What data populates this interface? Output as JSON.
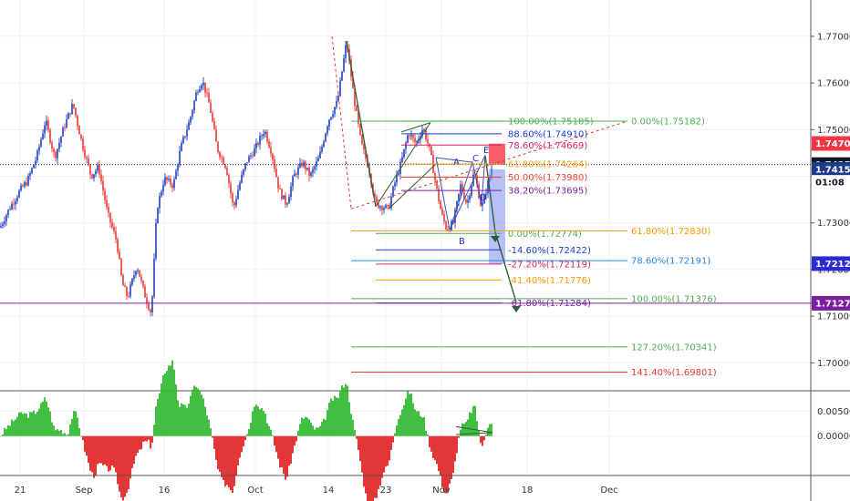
{
  "chart_data": {
    "type": "candlestick",
    "title": "",
    "grid": true,
    "x_ticks": [
      "21",
      "Sep",
      "16",
      "Oct",
      "14",
      "23",
      "Nov",
      "18",
      "Dec"
    ],
    "y_ticks": [
      "1.77000",
      "1.76000",
      "1.75000",
      "1.74000",
      "1.73000",
      "1.72000",
      "1.71000",
      "1.70000"
    ],
    "y_range": [
      1.6942,
      1.7778
    ],
    "price_tags": [
      {
        "label": "1.74704",
        "value": 1.74704,
        "color": "#f23645"
      },
      {
        "label": "1.74251",
        "value": 1.74251,
        "color": "#131722"
      },
      {
        "label": "1.74150",
        "value": 1.7415,
        "color": "#1e3a8a"
      },
      {
        "label": "01:08",
        "value": 1.7387,
        "color": "#ffffff",
        "text_color": "#131722"
      },
      {
        "label": "1.72127",
        "value": 1.72127,
        "color": "#2b2bd6"
      },
      {
        "label": "1.71277",
        "value": 1.71277,
        "color": "#7b1fa2"
      }
    ],
    "fib_retracement": [
      {
        "label": "100.00%(1.75185)",
        "value": 1.75185,
        "color": "#4caf50"
      },
      {
        "label": "88.60%(1.74910)",
        "value": 1.7491,
        "color": "#1e3ad6"
      },
      {
        "label": "78.60%(1.74669)",
        "value": 1.74669,
        "color": "#e91e63"
      },
      {
        "label": "61.80%(1.74264)",
        "value": 1.74264,
        "color": "#ff9800"
      },
      {
        "label": "50.00%(1.73980)",
        "value": 1.7398,
        "color": "#f44336"
      },
      {
        "label": "38.20%(1.73695)",
        "value": 1.73695,
        "color": "#7b1fa2"
      },
      {
        "label": "0.00%(1.72774)",
        "value": 1.72774,
        "color": "#4caf50"
      },
      {
        "label": "-14.60%(1.72422)",
        "value": 1.72422,
        "color": "#1e3ad6"
      },
      {
        "label": "-27.20%(1.72119)",
        "value": 1.72119,
        "color": "#e91e63"
      },
      {
        "label": "-41.40%(1.71776)",
        "value": 1.71776,
        "color": "#ff9800"
      },
      {
        "label": "-61.80%(1.71284)",
        "value": 1.71284,
        "color": "#7b1fa2"
      }
    ],
    "fib_extension": [
      {
        "label": "0.00%(1.75182)",
        "value": 1.75182,
        "color": "#4caf50"
      },
      {
        "label": "61.80%(1.72830)",
        "value": 1.7283,
        "color": "#ff9800"
      },
      {
        "label": "78.60%(1.72191)",
        "value": 1.72191,
        "color": "#1e88e5"
      },
      {
        "label": "100.00%(1.71376)",
        "value": 1.71376,
        "color": "#4caf50"
      },
      {
        "label": "127.20%(1.70341)",
        "value": 1.70341,
        "color": "#4caf50"
      },
      {
        "label": "141.40%(1.69801)",
        "value": 1.69801,
        "color": "#e53935"
      }
    ],
    "pattern_labels": [
      "A",
      "B",
      "C",
      "D",
      "E"
    ],
    "oscillator": {
      "y_ticks": [
        "0.00500",
        "0.00000"
      ],
      "y_range": [
        -0.0079,
        0.0089
      ]
    }
  }
}
